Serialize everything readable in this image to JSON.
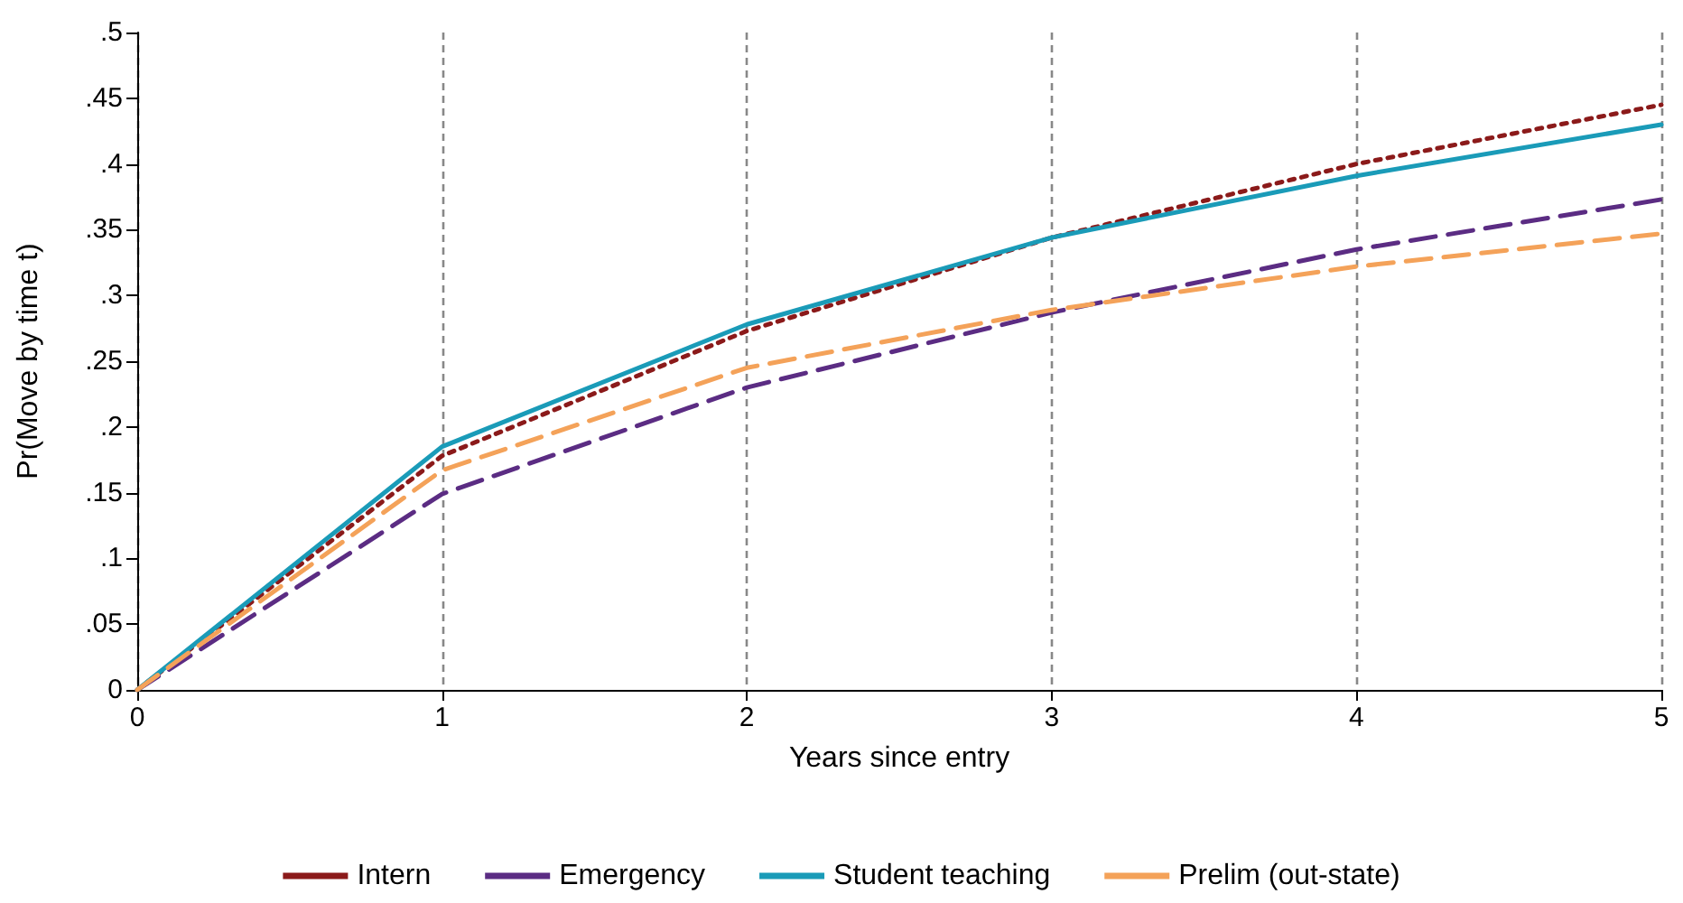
{
  "chart_data": {
    "type": "line",
    "xlabel": "Years since entry",
    "ylabel": "Pr(Move by time t)",
    "x": [
      0,
      1,
      2,
      3,
      4,
      5
    ],
    "series": [
      {
        "name": "Intern",
        "color": "#8b1a1a",
        "line_style": "dotted",
        "values": [
          0,
          0.178,
          0.273,
          0.344,
          0.4,
          0.445
        ]
      },
      {
        "name": "Emergency",
        "color": "#5b2c83",
        "line_style": "dashed",
        "values": [
          0,
          0.149,
          0.23,
          0.287,
          0.335,
          0.373
        ]
      },
      {
        "name": "Student teaching",
        "color": "#1a9bb8",
        "line_style": "solid",
        "values": [
          0,
          0.185,
          0.278,
          0.344,
          0.391,
          0.43
        ]
      },
      {
        "name": "Prelim (out-state)",
        "color": "#f4a259",
        "line_style": "dashed",
        "values": [
          0,
          0.167,
          0.245,
          0.289,
          0.322,
          0.347
        ]
      }
    ],
    "xlim": [
      0,
      5
    ],
    "xticks": [
      0,
      1,
      2,
      3,
      4,
      5
    ],
    "ylim": [
      0,
      0.5
    ],
    "yticks": [
      {
        "value": 0,
        "label": "0"
      },
      {
        "value": 0.05,
        "label": ".05"
      },
      {
        "value": 0.1,
        "label": ".1"
      },
      {
        "value": 0.15,
        "label": ".15"
      },
      {
        "value": 0.2,
        "label": ".2"
      },
      {
        "value": 0.25,
        "label": ".25"
      },
      {
        "value": 0.3,
        "label": ".3"
      },
      {
        "value": 0.35,
        "label": ".35"
      },
      {
        "value": 0.4,
        "label": ".4"
      },
      {
        "value": 0.45,
        "label": ".45"
      },
      {
        "value": 0.5,
        "label": ".5"
      }
    ],
    "grid": "x",
    "legend": "bottom",
    "marker": "none"
  }
}
